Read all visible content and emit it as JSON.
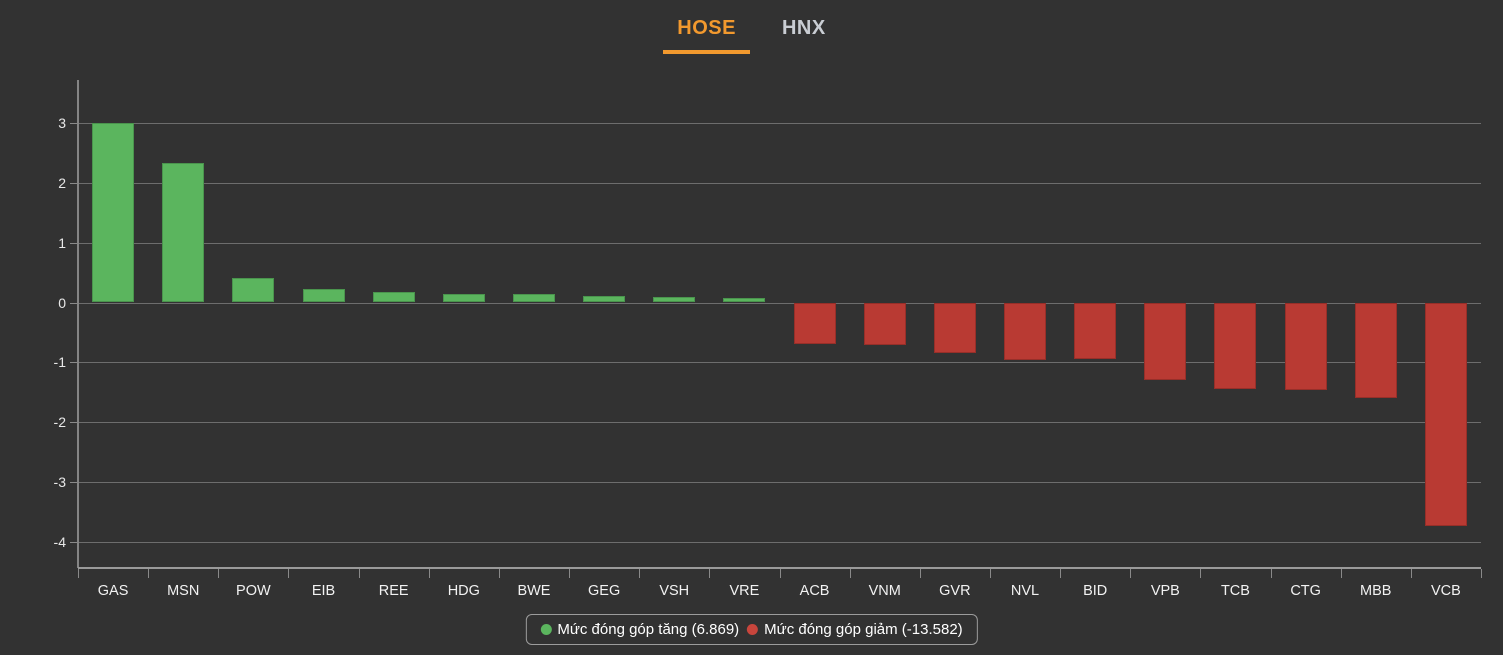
{
  "tabs": {
    "items": [
      {
        "label": "HOSE",
        "active": true
      },
      {
        "label": "HNX",
        "active": false
      }
    ],
    "active_color": "#f2992e",
    "inactive_color": "#c9cdd3"
  },
  "chart_data": {
    "type": "bar",
    "title": "",
    "xlabel": "",
    "ylabel": "",
    "categories": [
      "GAS",
      "MSN",
      "POW",
      "EIB",
      "REE",
      "HDG",
      "BWE",
      "GEG",
      "VSH",
      "VRE",
      "ACB",
      "VNM",
      "GVR",
      "NVL",
      "BID",
      "VPB",
      "TCB",
      "CTG",
      "MBB",
      "VCB"
    ],
    "values": [
      3.0,
      2.33,
      0.41,
      0.23,
      0.18,
      0.15,
      0.14,
      0.11,
      0.1,
      0.08,
      -0.69,
      -0.7,
      -0.84,
      -0.95,
      -0.93,
      -1.29,
      -1.43,
      -1.46,
      -1.58,
      -3.72
    ],
    "yticks": [
      3,
      2,
      1,
      0,
      -1,
      -2,
      -3,
      -4
    ],
    "ylim": [
      -4.43,
      3.71
    ],
    "grid": true,
    "legend_position": "bottom",
    "positive_color": "#5bb55e",
    "negative_color": "#b93a33",
    "legend": [
      {
        "label": "Mức đóng góp tăng (6.869)",
        "color": "#5bb55e"
      },
      {
        "label": "Mức đóng góp giảm (-13.582)",
        "color": "#c8453c"
      }
    ]
  },
  "colors": {
    "background": "#323232",
    "gridline": "#6d6d6d",
    "axis_text": "#e8e8e8"
  }
}
